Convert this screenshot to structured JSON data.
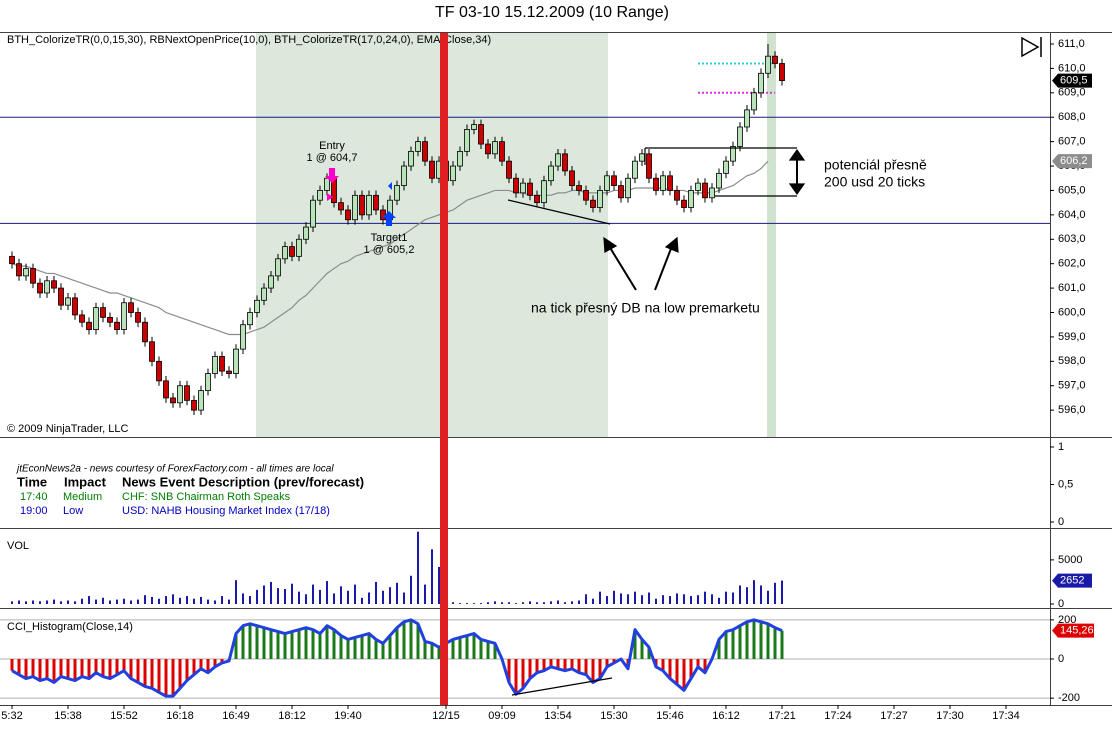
{
  "chart_data": [
    {
      "type": "candlestick",
      "title": "TF 03-10  15.12.2009 (10 Range)",
      "indicators": "BTH_ColorizeTR(0,0,15,30), RBNextOpenPrice(10,0), BTH_ColorizeTR(17,0,24,0), EMA(Close,34)",
      "copyright": "© 2009 NinjaTrader, LLC",
      "categories": [
        "5:32",
        null,
        null,
        null,
        null,
        null,
        null,
        null,
        "15:38",
        null,
        null,
        null,
        null,
        null,
        null,
        null,
        "15:52",
        null,
        null,
        null,
        null,
        null,
        null,
        null,
        "16:18",
        null,
        null,
        null,
        null,
        null,
        null,
        null,
        "16:49",
        null,
        null,
        null,
        null,
        null,
        null,
        null,
        "18:12",
        null,
        null,
        null,
        null,
        null,
        null,
        null,
        "19:40",
        null,
        null,
        null,
        null,
        null,
        null,
        null,
        null,
        null,
        null,
        null,
        null,
        null,
        "12/15",
        null,
        null,
        null,
        null,
        null,
        null,
        null,
        "09:09",
        null,
        null,
        null,
        null,
        null,
        null,
        null,
        "13:54",
        null,
        null,
        null,
        null,
        null,
        null,
        null,
        "15:30",
        null,
        null,
        null,
        null,
        null,
        null,
        null,
        "15:46",
        null,
        null,
        null,
        null,
        null,
        null,
        null,
        "16:12",
        null,
        null,
        null,
        null,
        null,
        null,
        null,
        "17:21"
      ],
      "extra_xtick_labels": [
        "17:24",
        "17:27",
        "17:30",
        "17:34"
      ],
      "open": [
        602.3,
        602.0,
        601.5,
        601.8,
        601.2,
        600.8,
        601.3,
        601.0,
        600.3,
        600.6,
        599.9,
        599.6,
        599.3,
        600.2,
        599.8,
        599.6,
        599.3,
        600.4,
        600.0,
        599.6,
        598.8,
        598.0,
        597.2,
        596.5,
        596.3,
        597.0,
        596.4,
        596.0,
        596.8,
        597.5,
        598.2,
        597.6,
        597.5,
        598.5,
        599.5,
        600.0,
        600.5,
        601.0,
        601.5,
        602.2,
        602.7,
        602.3,
        603.0,
        603.5,
        604.6,
        605.0,
        605.5,
        604.5,
        604.2,
        603.8,
        604.8,
        604.0,
        604.8,
        604.2,
        603.8,
        604.6,
        605.2,
        606.0,
        606.6,
        607.0,
        606.2,
        605.5,
        606.2,
        605.4,
        606.0,
        606.6,
        607.5,
        607.7,
        606.9,
        606.5,
        607.0,
        606.2,
        605.5,
        604.9,
        605.3,
        604.8,
        604.5,
        605.4,
        606.0,
        606.5,
        605.8,
        605.2,
        605.0,
        604.6,
        604.3,
        605.0,
        605.6,
        605.2,
        604.7,
        605.5,
        606.2,
        606.5,
        605.5,
        605.0,
        605.6,
        605.0,
        604.6,
        604.3,
        605.0,
        605.3,
        604.7,
        605.1,
        605.7,
        606.2,
        606.8,
        607.6,
        608.3,
        609.0,
        609.8,
        610.5,
        610.2
      ],
      "high": [
        602.5,
        602.2,
        602.0,
        602.0,
        601.4,
        601.5,
        601.5,
        601.2,
        600.8,
        600.8,
        600.1,
        599.8,
        600.4,
        600.4,
        600.0,
        599.8,
        600.6,
        600.6,
        600.2,
        599.8,
        599.0,
        598.2,
        597.4,
        596.7,
        597.2,
        597.2,
        596.6,
        597.0,
        597.7,
        598.4,
        598.4,
        597.8,
        598.7,
        599.7,
        600.2,
        600.7,
        601.2,
        601.7,
        602.4,
        602.9,
        602.9,
        603.2,
        603.7,
        604.8,
        605.2,
        605.7,
        605.7,
        604.7,
        604.4,
        605.0,
        605.0,
        605.0,
        605.0,
        604.4,
        604.8,
        605.4,
        606.2,
        606.8,
        607.2,
        607.2,
        606.4,
        606.4,
        606.4,
        606.2,
        606.8,
        607.7,
        607.9,
        607.9,
        607.1,
        607.2,
        607.2,
        606.4,
        605.7,
        605.5,
        605.5,
        605.0,
        605.6,
        606.2,
        606.7,
        606.7,
        606.0,
        605.4,
        605.2,
        604.8,
        605.2,
        605.8,
        605.8,
        605.4,
        605.7,
        606.4,
        606.7,
        606.7,
        605.7,
        605.8,
        605.8,
        605.2,
        604.8,
        605.2,
        605.5,
        605.5,
        605.3,
        605.9,
        606.4,
        607.0,
        607.8,
        608.5,
        609.2,
        610.0,
        611.0,
        610.7,
        610.4
      ],
      "low": [
        601.8,
        601.3,
        601.3,
        601.0,
        600.6,
        600.6,
        600.8,
        600.1,
        600.1,
        599.7,
        599.4,
        599.1,
        599.1,
        599.6,
        599.4,
        599.1,
        599.1,
        599.8,
        599.4,
        598.6,
        597.8,
        597.0,
        596.3,
        596.1,
        596.1,
        596.2,
        595.8,
        595.8,
        596.6,
        597.3,
        597.4,
        597.3,
        597.3,
        598.3,
        599.3,
        599.8,
        600.3,
        600.8,
        601.3,
        602.0,
        602.1,
        602.1,
        602.8,
        603.3,
        604.4,
        604.8,
        604.3,
        604.0,
        603.6,
        603.6,
        603.8,
        603.8,
        604.0,
        603.6,
        603.6,
        604.4,
        605.0,
        605.8,
        606.4,
        606.0,
        605.3,
        605.3,
        605.2,
        605.2,
        605.8,
        606.4,
        607.3,
        606.7,
        606.3,
        606.3,
        606.0,
        605.3,
        604.7,
        604.7,
        604.6,
        604.3,
        604.3,
        605.2,
        605.8,
        605.6,
        605.0,
        604.8,
        604.4,
        604.1,
        604.1,
        604.8,
        605.0,
        604.5,
        604.5,
        605.3,
        606.0,
        605.3,
        604.8,
        604.8,
        604.8,
        604.4,
        604.1,
        604.1,
        604.8,
        604.5,
        604.5,
        604.9,
        605.5,
        606.0,
        606.6,
        607.4,
        608.1,
        608.8,
        609.6,
        610.0,
        609.3
      ],
      "close": [
        602.0,
        601.5,
        601.8,
        601.2,
        600.8,
        601.3,
        601.0,
        600.3,
        600.6,
        599.9,
        599.6,
        599.3,
        600.2,
        599.8,
        599.6,
        599.3,
        600.4,
        600.0,
        599.6,
        598.8,
        598.0,
        597.2,
        596.5,
        596.3,
        597.0,
        596.4,
        596.0,
        596.8,
        597.5,
        598.2,
        597.6,
        597.5,
        598.5,
        599.5,
        600.0,
        600.5,
        601.0,
        601.5,
        602.2,
        602.7,
        602.3,
        603.0,
        603.5,
        604.6,
        605.0,
        605.5,
        604.5,
        604.2,
        603.8,
        604.8,
        604.0,
        604.8,
        604.2,
        603.8,
        604.6,
        605.2,
        606.0,
        606.6,
        607.0,
        606.2,
        605.5,
        606.2,
        605.4,
        606.0,
        606.6,
        607.5,
        607.7,
        606.9,
        606.5,
        607.0,
        606.2,
        605.5,
        604.9,
        605.3,
        604.8,
        604.5,
        605.4,
        606.0,
        606.5,
        605.8,
        605.2,
        605.0,
        604.6,
        604.3,
        605.0,
        605.6,
        605.2,
        604.7,
        605.5,
        606.2,
        606.5,
        605.5,
        605.0,
        605.6,
        605.0,
        604.6,
        604.3,
        605.0,
        605.3,
        604.7,
        605.1,
        605.7,
        606.2,
        606.8,
        607.6,
        608.3,
        609.0,
        609.8,
        610.5,
        610.2,
        609.5
      ],
      "ema_values": [
        602.0,
        601.9,
        601.9,
        601.8,
        601.7,
        601.6,
        601.6,
        601.5,
        601.4,
        601.3,
        601.2,
        601.1,
        601.0,
        600.9,
        600.8,
        600.8,
        600.7,
        600.6,
        600.5,
        600.4,
        600.3,
        600.2,
        600.0,
        599.9,
        599.8,
        599.7,
        599.6,
        599.5,
        599.4,
        599.3,
        599.2,
        599.1,
        599.1,
        599.1,
        599.2,
        599.3,
        599.4,
        599.6,
        599.8,
        600.0,
        600.2,
        600.5,
        600.7,
        601.0,
        601.3,
        601.6,
        601.8,
        602.0,
        602.1,
        602.3,
        602.4,
        602.5,
        602.6,
        602.7,
        602.8,
        603.0,
        603.2,
        603.4,
        603.6,
        603.8,
        603.9,
        604.0,
        604.1,
        604.2,
        604.4,
        604.6,
        604.7,
        604.8,
        604.9,
        605.0,
        605.0,
        605.0,
        604.9,
        604.9,
        604.8,
        604.8,
        604.8,
        604.8,
        604.9,
        604.9,
        605.0,
        605.0,
        604.9,
        604.9,
        604.9,
        604.9,
        605.0,
        605.0,
        605.0,
        605.1,
        605.1,
        605.1,
        605.1,
        605.1,
        605.0,
        605.0,
        605.0,
        604.9,
        604.9,
        604.9,
        604.9,
        605.0,
        605.1,
        605.2,
        605.4,
        605.6,
        605.7,
        605.9,
        606.2,
        null,
        null
      ],
      "ema_color": "#8c8c8c",
      "up_color": "#b9e3b9",
      "down_color": "#cc0000",
      "ylim": [
        594.9,
        611.45
      ],
      "yticks": [
        {
          "value": 596,
          "label": "596,0"
        },
        {
          "value": 597,
          "label": "597,0"
        },
        {
          "value": 598,
          "label": "598,0"
        },
        {
          "value": 599,
          "label": "599,0"
        },
        {
          "value": 600,
          "label": "600,0"
        },
        {
          "value": 601,
          "label": "601,0"
        },
        {
          "value": 602,
          "label": "602,0"
        },
        {
          "value": 603,
          "label": "603,0"
        },
        {
          "value": 604,
          "label": "604,0"
        },
        {
          "value": 605,
          "label": "605,0"
        },
        {
          "value": 606,
          "label": "606,0"
        },
        {
          "value": 607,
          "label": "607,0"
        },
        {
          "value": 608,
          "label": "608,0"
        },
        {
          "value": 609,
          "label": "609,0"
        },
        {
          "value": 610,
          "label": "610,0"
        },
        {
          "value": 611,
          "label": "611,0"
        }
      ],
      "hlines": [
        {
          "value": 608.0,
          "color": "#1a1a80"
        },
        {
          "value": 603.65,
          "color": "#1a1a80"
        }
      ],
      "levels": [
        {
          "value": 610.2,
          "color": "#30d0d8"
        },
        {
          "value": 609.0,
          "color": "#e030e0"
        }
      ],
      "price_markers": [
        {
          "value": 609.5,
          "label": "609,5",
          "color": "#000000"
        },
        {
          "value": 606.2,
          "label": "606,2",
          "color": "#8c8c8c"
        }
      ],
      "annotations": {
        "entry": "Entry",
        "entry_fill": "1 @ 604,7",
        "target": "Target1",
        "target_fill": "1 @ 605,2",
        "potential_1": "potenciál přesně",
        "potential_2": "200 usd 20 ticks",
        "db_note": "na tick přesný DB na low premarketu"
      }
    },
    {
      "type": "news",
      "source": "jtEconNews2a - news courtesy of ForexFactory.com - all times are local",
      "columns": [
        "Time",
        "Impact",
        "News Event Description (prev/forecast)"
      ],
      "rows": [
        [
          "17:40",
          "Medium",
          "CHF: SNB Chairman Roth Speaks"
        ],
        [
          "19:00",
          "Low",
          "USD: NAHB Housing Market Index (17/18)"
        ]
      ],
      "row_colors": [
        "#008000",
        "#0000c0"
      ],
      "ylim": [
        -0.08,
        1.12
      ],
      "yticks": [
        1,
        {
          "value": 0.5,
          "label": "0,5"
        },
        0
      ]
    },
    {
      "type": "bar",
      "title": "VOL",
      "values": [
        300,
        400,
        300,
        400,
        300,
        400,
        500,
        300,
        400,
        300,
        600,
        900,
        500,
        700,
        400,
        500,
        600,
        400,
        500,
        1000,
        800,
        600,
        900,
        1100,
        700,
        900,
        600,
        800,
        500,
        400,
        900,
        500,
        2700,
        1200,
        900,
        1600,
        2100,
        2500,
        1800,
        1700,
        2300,
        1400,
        1100,
        2200,
        1600,
        2600,
        1200,
        2000,
        1500,
        2200,
        700,
        1300,
        2500,
        1500,
        1900,
        2400,
        1300,
        3200,
        8200,
        2200,
        6200,
        4200,
        300,
        200,
        100,
        100,
        100,
        100,
        200,
        300,
        200,
        200,
        100,
        200,
        300,
        200,
        200,
        300,
        400,
        200,
        300,
        400,
        1100,
        600,
        1400,
        900,
        1500,
        1200,
        1100,
        1400,
        1000,
        1300,
        600,
        1000,
        900,
        1200,
        1100,
        900,
        1000,
        1400,
        1100,
        700,
        1400,
        1300,
        2100,
        1900,
        2700,
        2100,
        1500,
        2400,
        2652
      ],
      "color": "#1a1aa8",
      "ylim": [
        0,
        8500
      ],
      "yticks": [
        0,
        5000
      ]
    },
    {
      "type": "cci",
      "title": "CCI_Histogram(Close,14)",
      "values": [
        -60,
        -80,
        -100,
        -90,
        -110,
        -100,
        -120,
        -90,
        -100,
        -110,
        -90,
        -100,
        -70,
        -90,
        -100,
        -80,
        -60,
        -100,
        -120,
        -140,
        -150,
        -170,
        -190,
        -190,
        -150,
        -110,
        -80,
        -50,
        -70,
        -40,
        -20,
        -10,
        130,
        170,
        180,
        170,
        160,
        150,
        140,
        130,
        140,
        150,
        160,
        150,
        130,
        170,
        150,
        120,
        100,
        110,
        120,
        130,
        100,
        80,
        120,
        160,
        190,
        200,
        180,
        90,
        80,
        60,
        80,
        100,
        110,
        120,
        130,
        100,
        90,
        80,
        0,
        -120,
        -180,
        -150,
        -100,
        -70,
        -60,
        -40,
        -50,
        -60,
        -50,
        -70,
        -80,
        -120,
        -100,
        -40,
        -20,
        0,
        -50,
        150,
        100,
        60,
        -40,
        -60,
        -100,
        -130,
        -160,
        -100,
        -40,
        -70,
        0,
        100,
        140,
        150,
        170,
        190,
        200,
        190,
        180,
        160,
        145.26
      ],
      "last_label": "145,26",
      "pos_color": "#1a7a1a",
      "neg_color": "#dd0000",
      "line_color": "#2040e0",
      "ylim": [
        -230,
        230
      ],
      "yticks": [
        200,
        0,
        -200
      ],
      "grid": true
    }
  ]
}
